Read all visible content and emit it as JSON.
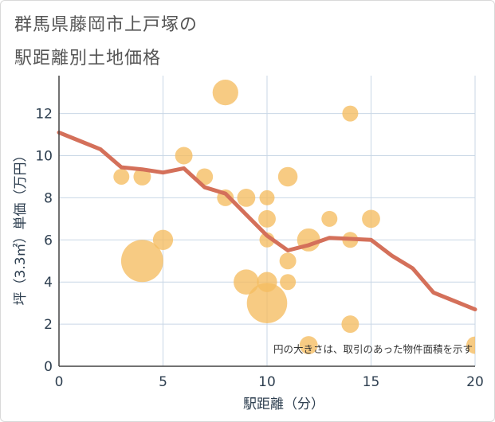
{
  "chart_data": {
    "type": "scatter",
    "title_lines": [
      "群馬県藤岡市上戸塚の",
      "駅距離別土地価格"
    ],
    "xlabel": "駅距離（分）",
    "ylabel": "坪（3.3㎡）単価（万円）",
    "xlim": [
      0,
      20
    ],
    "ylim": [
      0,
      13.8
    ],
    "x_ticks": [
      0,
      5,
      10,
      15,
      20
    ],
    "y_ticks": [
      0,
      2,
      4,
      6,
      8,
      10,
      12
    ],
    "note": "円の大きさは、取引のあった物件面積を示す",
    "colors": {
      "bubble": "#f5bd60",
      "line": "#d4705a",
      "grid": "#c9d7e6"
    },
    "scatter": [
      {
        "x": 3,
        "y": 9,
        "size": 1
      },
      {
        "x": 4,
        "y": 9,
        "size": 1.2
      },
      {
        "x": 4,
        "y": 5,
        "size": 7
      },
      {
        "x": 5,
        "y": 6,
        "size": 1.6
      },
      {
        "x": 6,
        "y": 10,
        "size": 1.2
      },
      {
        "x": 7,
        "y": 9,
        "size": 1.1
      },
      {
        "x": 8,
        "y": 13,
        "size": 2.6
      },
      {
        "x": 8,
        "y": 8,
        "size": 1.1
      },
      {
        "x": 9,
        "y": 8,
        "size": 1.3
      },
      {
        "x": 9,
        "y": 4,
        "size": 2.5
      },
      {
        "x": 10,
        "y": 8,
        "size": 0.9
      },
      {
        "x": 10,
        "y": 7,
        "size": 1.2
      },
      {
        "x": 10,
        "y": 6,
        "size": 0.9
      },
      {
        "x": 10,
        "y": 4,
        "size": 1.6
      },
      {
        "x": 10,
        "y": 3,
        "size": 6.4
      },
      {
        "x": 11,
        "y": 9,
        "size": 1.5
      },
      {
        "x": 11,
        "y": 5,
        "size": 1.1
      },
      {
        "x": 11,
        "y": 4,
        "size": 1
      },
      {
        "x": 12,
        "y": 6,
        "size": 2.1
      },
      {
        "x": 12,
        "y": 1,
        "size": 1.3
      },
      {
        "x": 13,
        "y": 7,
        "size": 1
      },
      {
        "x": 14,
        "y": 12,
        "size": 1
      },
      {
        "x": 14,
        "y": 6,
        "size": 1
      },
      {
        "x": 14,
        "y": 2,
        "size": 1.2
      },
      {
        "x": 15,
        "y": 7,
        "size": 1.3
      },
      {
        "x": 20,
        "y": 1,
        "size": 1.2
      }
    ],
    "line": {
      "x": [
        0,
        1,
        2,
        3,
        4,
        5,
        6,
        7,
        8,
        9,
        10,
        11,
        12,
        13,
        14,
        15,
        16,
        17,
        18,
        19,
        20
      ],
      "y": [
        11.1,
        10.7,
        10.3,
        9.45,
        9.35,
        9.2,
        9.4,
        8.5,
        8.2,
        7.2,
        6.2,
        5.5,
        5.75,
        6.1,
        6.05,
        6.0,
        5.25,
        4.65,
        3.5,
        3.1,
        2.7
      ]
    }
  }
}
